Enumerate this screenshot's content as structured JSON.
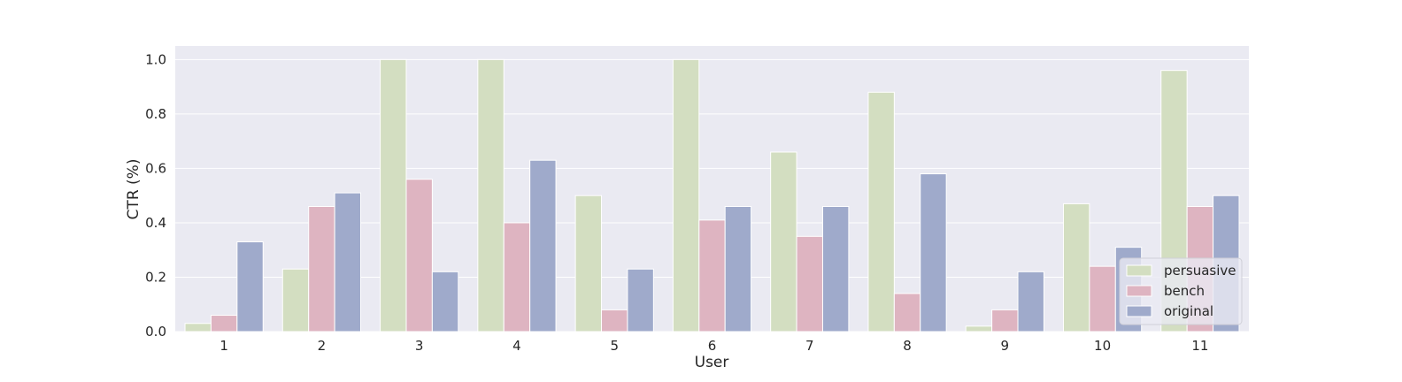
{
  "chart_data": {
    "type": "bar",
    "title": "",
    "xlabel": "User",
    "ylabel": "CTR (%)",
    "ylim": [
      0,
      1.05
    ],
    "yticks": [
      "0.0",
      "0.2",
      "0.4",
      "0.6",
      "0.8",
      "1.0"
    ],
    "grid": true,
    "legend_position": "lower-right",
    "categories": [
      "1",
      "2",
      "3",
      "4",
      "5",
      "6",
      "7",
      "8",
      "9",
      "10",
      "11"
    ],
    "series": [
      {
        "name": "persuasive",
        "color": "#d3dec1",
        "values": [
          0.03,
          0.23,
          1.0,
          1.0,
          0.5,
          1.0,
          0.66,
          0.88,
          0.02,
          0.47,
          0.96
        ]
      },
      {
        "name": "bench",
        "color": "#deb4c1",
        "values": [
          0.06,
          0.46,
          0.56,
          0.4,
          0.08,
          0.41,
          0.35,
          0.14,
          0.08,
          0.24,
          0.46
        ]
      },
      {
        "name": "original",
        "color": "#9faacb",
        "values": [
          0.33,
          0.51,
          0.22,
          0.63,
          0.23,
          0.46,
          0.46,
          0.58,
          0.22,
          0.31,
          0.5
        ]
      }
    ]
  }
}
